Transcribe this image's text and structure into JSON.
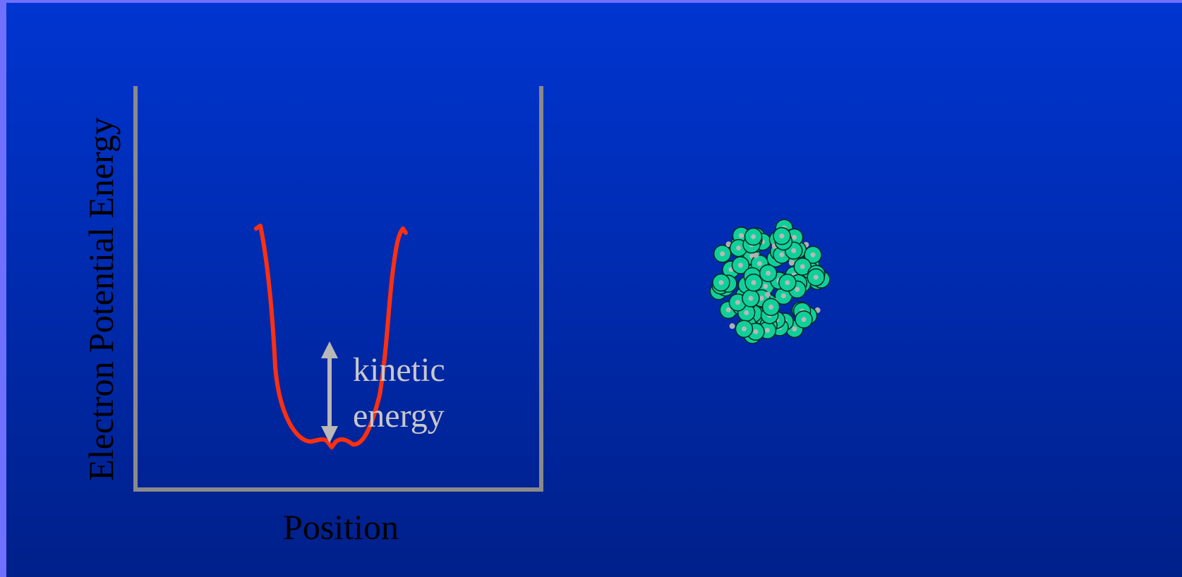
{
  "axes": {
    "y_label": "Electron Potential Energy",
    "x_label": "Position"
  },
  "annotation": {
    "lines": [
      "kinetic",
      "energy"
    ]
  }
}
